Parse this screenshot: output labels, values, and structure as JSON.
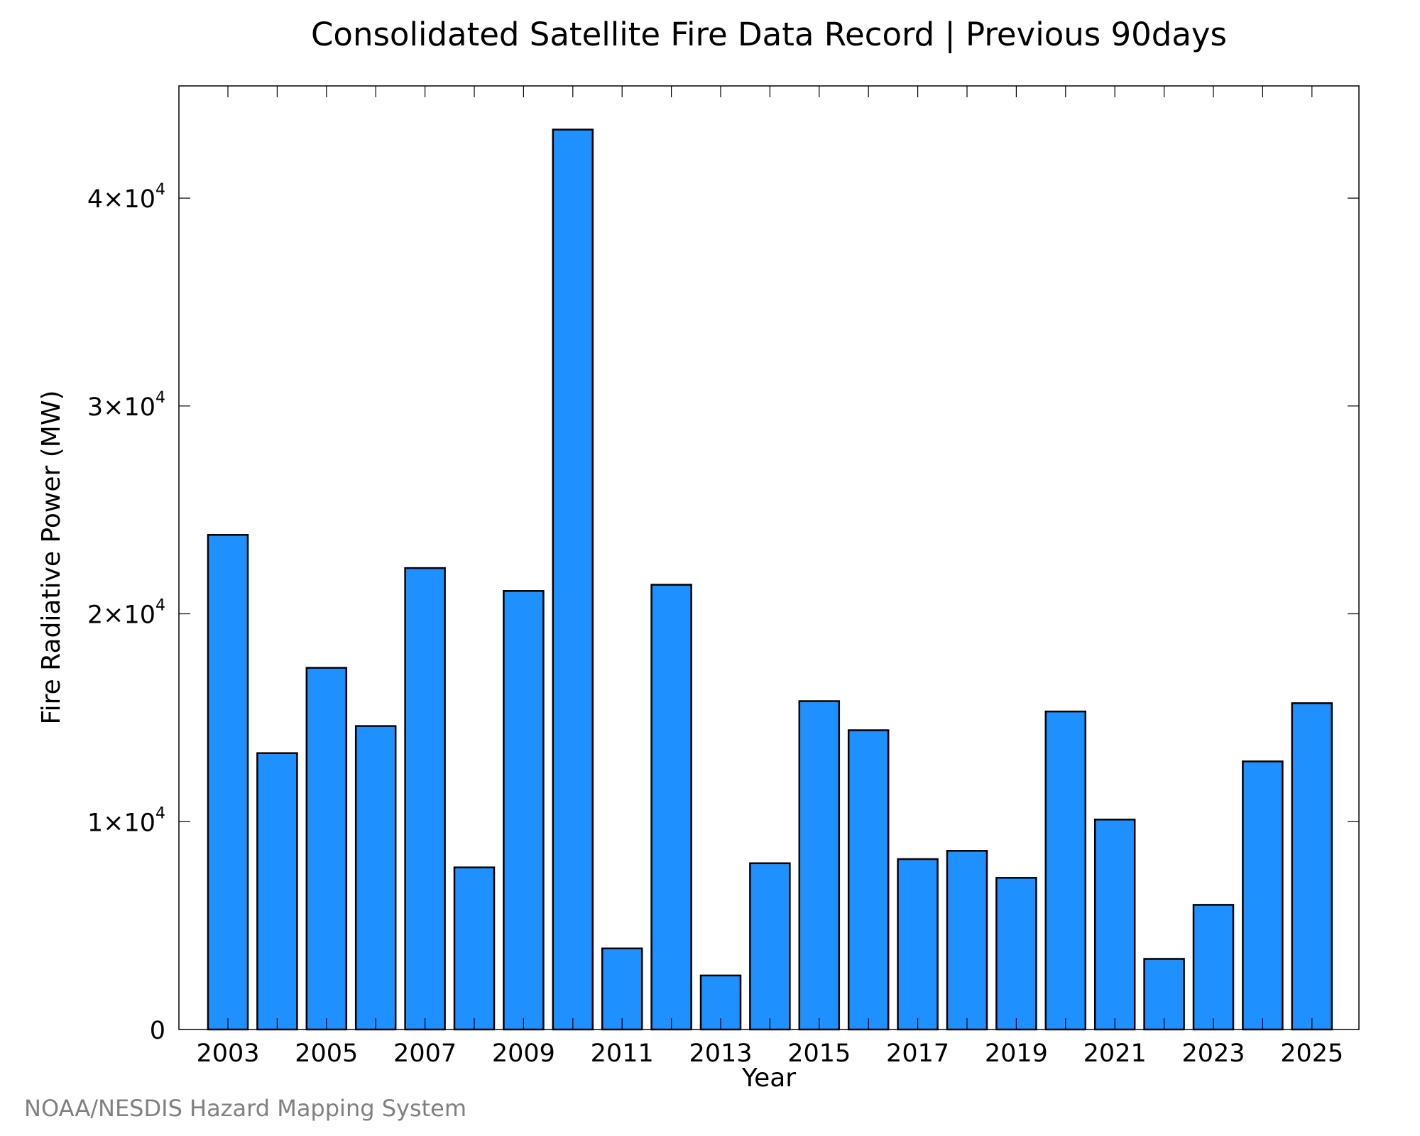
{
  "chart_data": {
    "type": "bar",
    "title": "Consolidated Satellite Fire Data Record | Previous 90days",
    "xlabel": "Year",
    "ylabel": "Fire Radiative Power (MW)",
    "categories": [
      "2003",
      "2004",
      "2005",
      "2006",
      "2007",
      "2008",
      "2009",
      "2010",
      "2011",
      "2012",
      "2013",
      "2014",
      "2015",
      "2016",
      "2017",
      "2018",
      "2019",
      "2020",
      "2021",
      "2022",
      "2023",
      "2024",
      "2025"
    ],
    "values": [
      23800,
      13300,
      17400,
      14600,
      22200,
      7800,
      21100,
      43300,
      3900,
      21400,
      2600,
      8000,
      15800,
      14400,
      8200,
      8600,
      7300,
      15300,
      10100,
      3400,
      6000,
      12900,
      15700
    ],
    "x_tick_labels": [
      "2003",
      "2005",
      "2007",
      "2009",
      "2011",
      "2013",
      "2015",
      "2017",
      "2019",
      "2021",
      "2023",
      "2025"
    ],
    "y_ticks": [
      {
        "value": 0,
        "mantissa": "0",
        "exponent": ""
      },
      {
        "value": 10000,
        "mantissa": "1×10",
        "exponent": "4"
      },
      {
        "value": 20000,
        "mantissa": "2×10",
        "exponent": "4"
      },
      {
        "value": 30000,
        "mantissa": "3×10",
        "exponent": "4"
      },
      {
        "value": 40000,
        "mantissa": "4×10",
        "exponent": "4"
      }
    ],
    "ylim": [
      0,
      45400
    ],
    "grid": false,
    "legend": "none",
    "colors": {
      "bar_fill": "#1e90ff",
      "bar_stroke": "#000000",
      "axis": "#000000"
    }
  },
  "credit": "NOAA/NESDIS Hazard Mapping System"
}
